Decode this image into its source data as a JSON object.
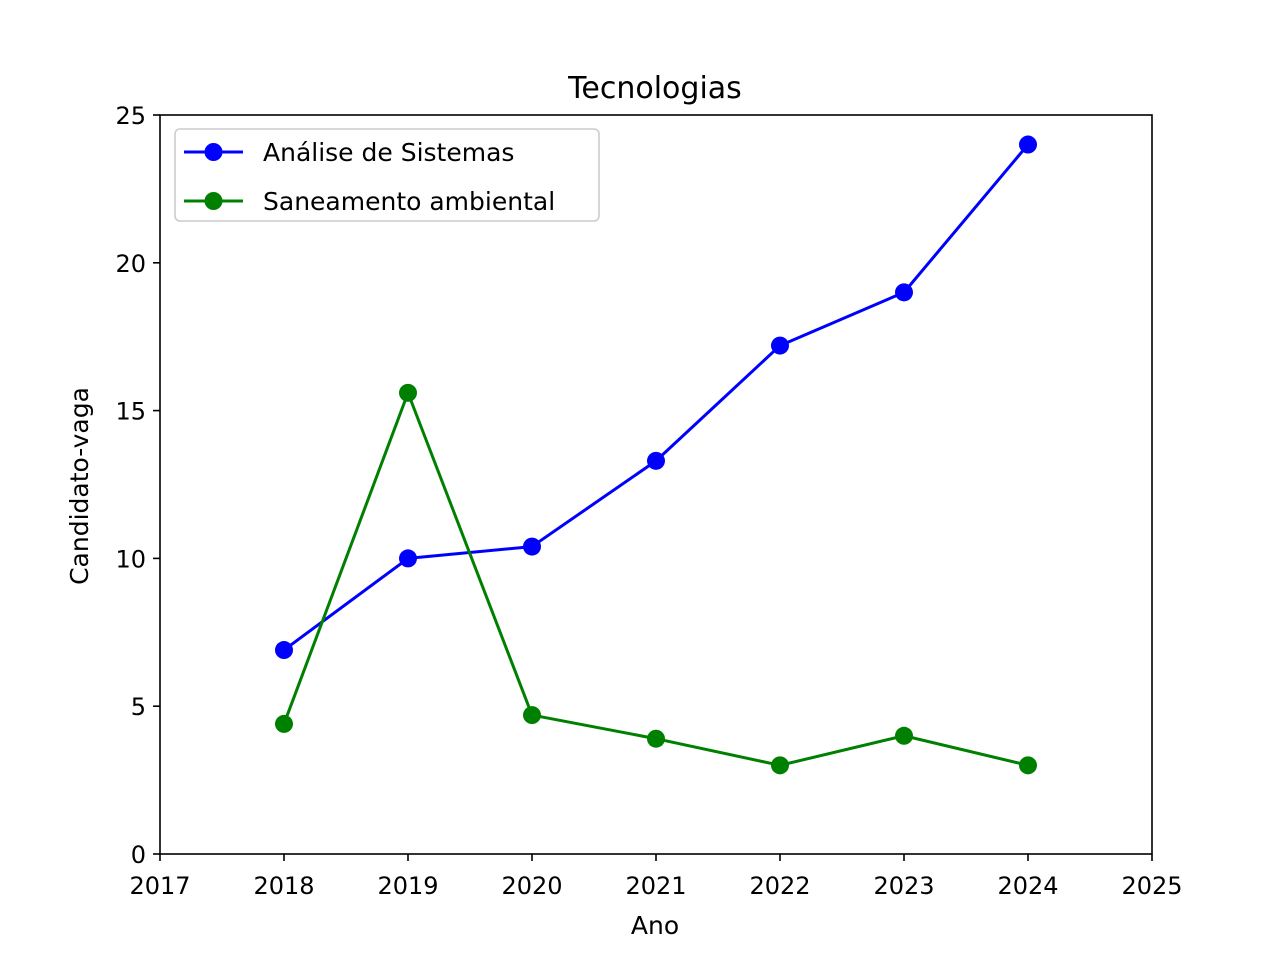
{
  "chart_data": {
    "type": "line",
    "title": "Tecnologias",
    "xlabel": "Ano",
    "ylabel": "Candidato-vaga",
    "xlim": [
      2017,
      2025
    ],
    "ylim": [
      0,
      25
    ],
    "xticks": [
      2017,
      2018,
      2019,
      2020,
      2021,
      2022,
      2023,
      2024,
      2025
    ],
    "yticks": [
      0,
      5,
      10,
      15,
      20,
      25
    ],
    "grid": false,
    "legend_position": "upper-left",
    "x": [
      2018,
      2019,
      2020,
      2021,
      2022,
      2023,
      2024
    ],
    "series": [
      {
        "name": "Análise de Sistemas",
        "color": "#0000ff",
        "marker": "circle",
        "values": [
          6.9,
          10.0,
          10.4,
          13.3,
          17.2,
          19.0,
          24.0
        ]
      },
      {
        "name": "Saneamento ambiental",
        "color": "#008000",
        "marker": "circle",
        "values": [
          4.4,
          15.6,
          4.7,
          3.9,
          3.0,
          4.0,
          3.0
        ]
      }
    ]
  }
}
